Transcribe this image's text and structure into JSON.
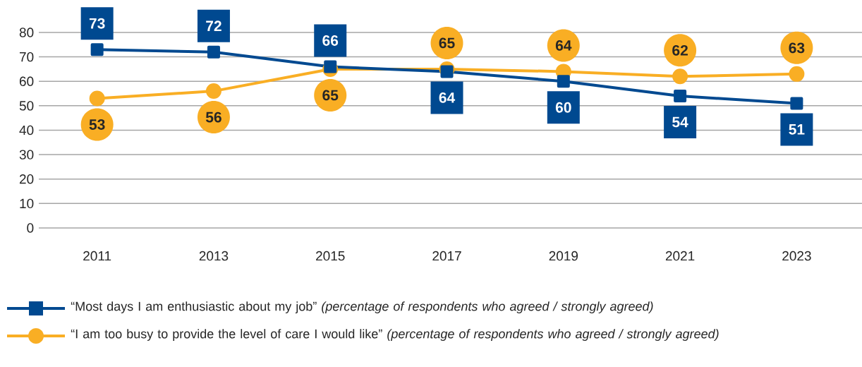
{
  "chart_data": {
    "type": "line",
    "categories": [
      "2011",
      "2013",
      "2015",
      "2017",
      "2019",
      "2021",
      "2023"
    ],
    "series": [
      {
        "name": "“Most days I am enthusiastic about my job” *(percentage of respondents who agreed / strongly agreed)*",
        "color": "#004990",
        "marker": "square",
        "values": [
          73,
          72,
          66,
          64,
          60,
          54,
          51
        ]
      },
      {
        "name": "“I am too busy to provide the level of care I would like” *(percentage of respondents who agreed / strongly agreed)*",
        "color": "#f9ae24",
        "marker": "circle",
        "values": [
          53,
          56,
          65,
          65,
          64,
          62,
          63
        ]
      }
    ],
    "ylim": [
      0,
      80
    ],
    "yticks": [
      0,
      10,
      20,
      30,
      40,
      50,
      60,
      70,
      80
    ],
    "grid": "y",
    "legend": "bottom",
    "data_labels": true,
    "line_style": "solid"
  }
}
